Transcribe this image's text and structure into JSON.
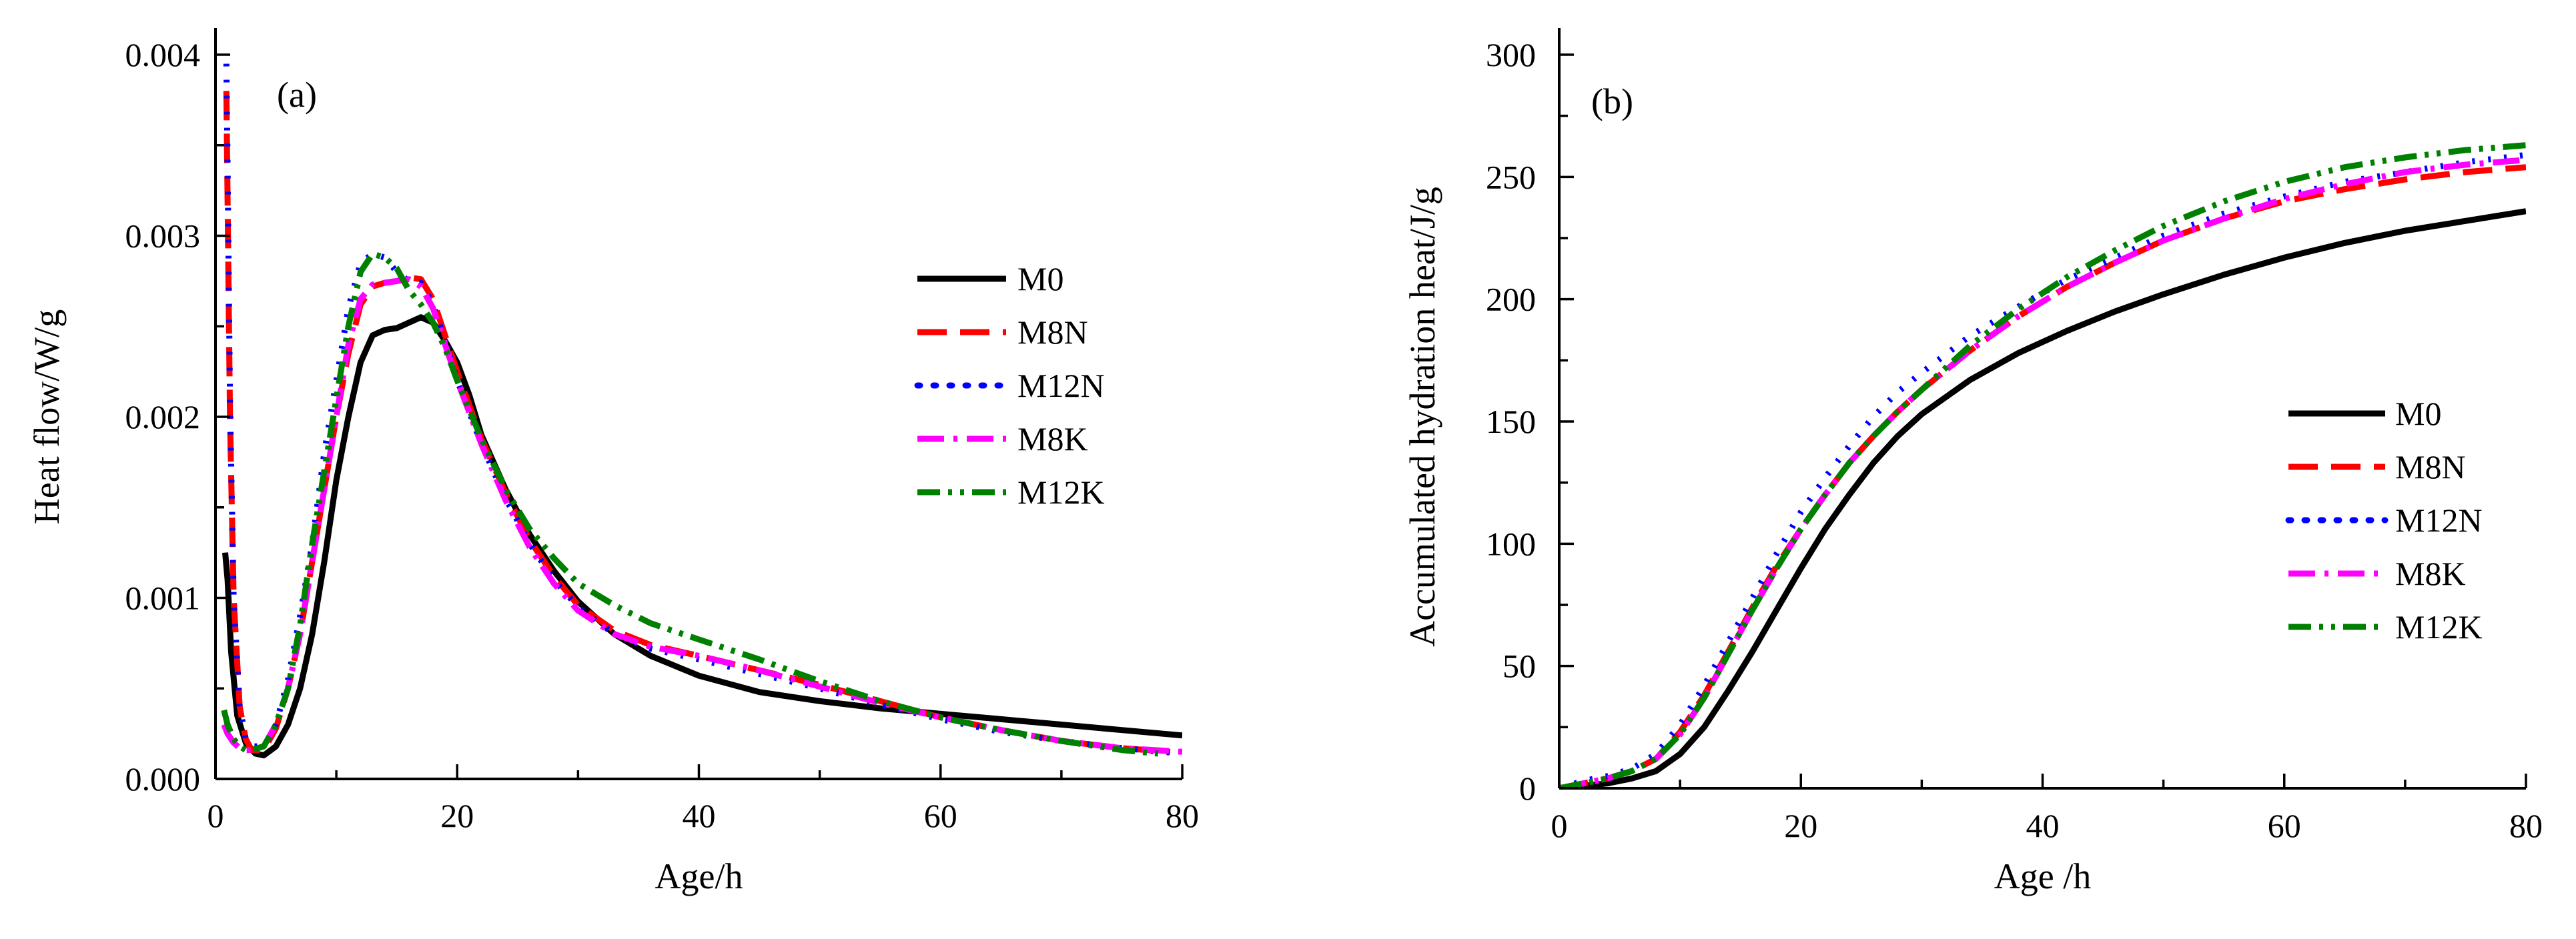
{
  "chart_data": [
    {
      "type": "line",
      "panel": "(a)",
      "title": "",
      "xlabel": "Age/h",
      "ylabel": "Heat flow/W/g",
      "xlim": [
        0,
        80
      ],
      "ylim": [
        0,
        0.004
      ],
      "xticks": [
        0,
        20,
        40,
        60,
        80
      ],
      "xtick_labels": [
        "0",
        "20",
        "40",
        "60",
        "80"
      ],
      "yticks": [
        0,
        0.001,
        0.002,
        0.003,
        0.004
      ],
      "ytick_labels": [
        "0.000",
        "0.001",
        "0.002",
        "0.003",
        "0.004"
      ],
      "grid": false,
      "legend_position": "right-middle",
      "series": [
        {
          "name": "M0",
          "color": "#000000",
          "dash": "solid",
          "x": [
            0.8,
            1.0,
            1.3,
            1.8,
            2.5,
            3.3,
            4.0,
            5.0,
            6.0,
            7.0,
            8.0,
            9.0,
            10.0,
            11.0,
            12.0,
            13.0,
            14.0,
            15.0,
            16.0,
            17.0,
            18.0,
            19.0,
            20.0,
            21.0,
            22.0,
            24.0,
            26.0,
            28.0,
            30.0,
            33.0,
            36.0,
            40.0,
            45.0,
            50.0,
            55.0,
            60.0,
            65.0,
            70.0,
            75.0,
            80.0
          ],
          "y": [
            0.00125,
            0.0011,
            0.0007,
            0.00035,
            0.0002,
            0.00014,
            0.00013,
            0.00018,
            0.0003,
            0.0005,
            0.0008,
            0.0012,
            0.00165,
            0.002,
            0.0023,
            0.00245,
            0.00248,
            0.00249,
            0.00252,
            0.00255,
            0.00252,
            0.00242,
            0.0023,
            0.00212,
            0.0019,
            0.0016,
            0.00135,
            0.00115,
            0.00098,
            0.0008,
            0.00068,
            0.00057,
            0.00048,
            0.00043,
            0.00039,
            0.00036,
            0.00033,
            0.0003,
            0.00027,
            0.00024
          ]
        },
        {
          "name": "M8N",
          "color": "#ff0000",
          "dash": "long-dash",
          "x": [
            0.9,
            1.0,
            1.2,
            1.5,
            2.0,
            2.5,
            3.0,
            4.0,
            5.0,
            6.0,
            7.0,
            8.0,
            9.0,
            10.0,
            11.0,
            12.0,
            13.0,
            14.0,
            15.0,
            16.0,
            17.0,
            18.0,
            19.0,
            20.0,
            22.0,
            24.0,
            26.0,
            28.0,
            30.0,
            33.0,
            36.0,
            40.0,
            45.0,
            50.0,
            55.0,
            60.0,
            65.0,
            70.0,
            75.0,
            79.0
          ],
          "y": [
            0.0038,
            0.0032,
            0.002,
            0.001,
            0.0004,
            0.00022,
            0.00016,
            0.00016,
            0.00028,
            0.0005,
            0.0008,
            0.0012,
            0.0016,
            0.002,
            0.00235,
            0.00262,
            0.00272,
            0.00274,
            0.00275,
            0.00277,
            0.00276,
            0.00265,
            0.00245,
            0.00225,
            0.00188,
            0.00158,
            0.00132,
            0.00112,
            0.00096,
            0.00082,
            0.00074,
            0.00068,
            0.0006,
            0.00052,
            0.00043,
            0.00034,
            0.00027,
            0.00021,
            0.00017,
            0.00015
          ]
        },
        {
          "name": "M12N",
          "color": "#0000ff",
          "dash": "dot",
          "x": [
            0.9,
            1.0,
            1.2,
            1.5,
            2.0,
            2.5,
            3.0,
            4.0,
            5.0,
            6.0,
            7.0,
            8.0,
            9.0,
            10.0,
            11.0,
            12.0,
            13.0,
            14.0,
            15.0,
            16.0,
            17.0,
            18.0,
            19.0,
            20.0,
            22.0,
            24.0,
            26.0,
            28.0,
            30.0,
            33.0,
            36.0,
            40.0,
            45.0,
            50.0,
            55.0,
            60.0,
            65.0,
            70.0,
            75.0,
            80.0
          ],
          "y": [
            0.00395,
            0.0034,
            0.0021,
            0.001,
            0.0004,
            0.00022,
            0.00018,
            0.00018,
            0.0003,
            0.00055,
            0.0009,
            0.0013,
            0.0018,
            0.0022,
            0.0026,
            0.00285,
            0.0029,
            0.00288,
            0.0028,
            0.00275,
            0.00274,
            0.00262,
            0.00242,
            0.0022,
            0.00185,
            0.00155,
            0.0013,
            0.0011,
            0.00095,
            0.0008,
            0.00072,
            0.00066,
            0.00058,
            0.0005,
            0.00041,
            0.00033,
            0.00026,
            0.00021,
            0.00017,
            0.00014
          ]
        },
        {
          "name": "M8K",
          "color": "#ff00ff",
          "dash": "dash-dot",
          "x": [
            0.7,
            1.0,
            1.5,
            2.0,
            2.5,
            3.0,
            4.0,
            5.0,
            6.0,
            7.0,
            8.0,
            9.0,
            10.0,
            11.0,
            12.0,
            13.0,
            14.0,
            15.0,
            16.0,
            17.0,
            18.0,
            19.0,
            20.0,
            22.0,
            24.0,
            26.0,
            28.0,
            30.0,
            33.0,
            36.0,
            40.0,
            45.0,
            50.0,
            55.0,
            60.0,
            65.0,
            70.0,
            75.0,
            80.0
          ],
          "y": [
            0.0003,
            0.00025,
            0.0002,
            0.00017,
            0.00016,
            0.00016,
            0.00018,
            0.0003,
            0.0005,
            0.0008,
            0.0012,
            0.0016,
            0.002,
            0.0024,
            0.00265,
            0.00273,
            0.00274,
            0.00275,
            0.00276,
            0.00272,
            0.0026,
            0.0024,
            0.0022,
            0.00185,
            0.00154,
            0.00128,
            0.00108,
            0.00093,
            0.0008,
            0.00073,
            0.00068,
            0.0006,
            0.00051,
            0.00042,
            0.00034,
            0.00027,
            0.00021,
            0.00017,
            0.00015
          ]
        },
        {
          "name": "M12K",
          "color": "#008000",
          "dash": "dash-dot-dot",
          "x": [
            0.7,
            1.0,
            1.5,
            2.0,
            2.5,
            3.0,
            4.0,
            5.0,
            6.0,
            7.0,
            8.0,
            9.0,
            10.0,
            11.0,
            12.0,
            13.0,
            14.0,
            15.0,
            16.0,
            17.0,
            18.0,
            19.0,
            20.0,
            22.0,
            24.0,
            26.0,
            28.0,
            30.0,
            33.0,
            36.0,
            40.0,
            45.0,
            50.0,
            55.0,
            60.0,
            65.0,
            70.0,
            75.0,
            78.0
          ],
          "y": [
            0.00038,
            0.0003,
            0.00022,
            0.00018,
            0.00016,
            0.00016,
            0.00018,
            0.0003,
            0.0005,
            0.00085,
            0.0013,
            0.0017,
            0.0021,
            0.0025,
            0.0028,
            0.0029,
            0.00288,
            0.00282,
            0.0027,
            0.00262,
            0.00252,
            0.00238,
            0.0022,
            0.00188,
            0.0016,
            0.00138,
            0.00122,
            0.00108,
            0.00096,
            0.00086,
            0.00077,
            0.00066,
            0.00054,
            0.00043,
            0.00034,
            0.00027,
            0.00021,
            0.00016,
            0.00014
          ]
        }
      ]
    },
    {
      "type": "line",
      "panel": "(b)",
      "title": "",
      "xlabel": "Age /h",
      "ylabel": "Accumulated hydration heat/J/g",
      "xlim": [
        0,
        80
      ],
      "ylim": [
        0,
        300
      ],
      "xticks": [
        0,
        20,
        40,
        60,
        80
      ],
      "xtick_labels": [
        "0",
        "20",
        "40",
        "60",
        "80"
      ],
      "yticks": [
        0,
        50,
        100,
        150,
        200,
        250,
        300
      ],
      "ytick_labels": [
        "0",
        "50",
        "100",
        "150",
        "200",
        "250",
        "300"
      ],
      "grid": false,
      "legend_position": "right-middle",
      "series": [
        {
          "name": "M0",
          "color": "#000000",
          "dash": "solid",
          "x": [
            0,
            2,
            4,
            6,
            8,
            10,
            12,
            14,
            16,
            18,
            20,
            22,
            24,
            26,
            28,
            30,
            34,
            38,
            42,
            46,
            50,
            55,
            60,
            65,
            70,
            75,
            80
          ],
          "y": [
            0,
            1,
            2,
            4,
            7,
            14,
            25,
            40,
            56,
            73,
            90,
            106,
            120,
            133,
            144,
            153,
            167,
            178,
            187,
            195,
            202,
            210,
            217,
            223,
            228,
            232,
            236
          ]
        },
        {
          "name": "M8N",
          "color": "#ff0000",
          "dash": "long-dash",
          "x": [
            0,
            2,
            4,
            6,
            8,
            10,
            12,
            14,
            16,
            18,
            20,
            22,
            24,
            26,
            28,
            30,
            34,
            38,
            42,
            46,
            50,
            55,
            60,
            65,
            70,
            75,
            80
          ],
          "y": [
            0,
            2,
            4,
            7,
            12,
            23,
            38,
            56,
            74,
            91,
            106,
            120,
            133,
            144,
            154,
            163,
            179,
            193,
            205,
            215,
            224,
            233,
            240,
            245,
            249,
            252,
            254
          ]
        },
        {
          "name": "M12N",
          "color": "#0000ff",
          "dash": "dot",
          "x": [
            0,
            2,
            4,
            6,
            8,
            10,
            12,
            14,
            16,
            18,
            20,
            22,
            24,
            26,
            28,
            30,
            34,
            38,
            42,
            46,
            50,
            55,
            60,
            65,
            70,
            75,
            80
          ],
          "y": [
            0,
            3,
            5,
            8,
            14,
            26,
            42,
            60,
            78,
            96,
            113,
            127,
            140,
            152,
            162,
            170,
            185,
            197,
            208,
            217,
            226,
            235,
            242,
            248,
            252,
            256,
            259
          ]
        },
        {
          "name": "M8K",
          "color": "#ff00ff",
          "dash": "dash-dot",
          "x": [
            0,
            2,
            4,
            6,
            8,
            10,
            12,
            14,
            16,
            18,
            20,
            22,
            24,
            26,
            28,
            30,
            34,
            38,
            42,
            46,
            50,
            55,
            60,
            65,
            70,
            75,
            80
          ],
          "y": [
            0,
            2,
            4,
            7,
            12,
            22,
            37,
            55,
            73,
            90,
            106,
            120,
            133,
            144,
            154,
            163,
            179,
            193,
            205,
            215,
            224,
            233,
            241,
            247,
            252,
            255,
            257
          ]
        },
        {
          "name": "M12K",
          "color": "#008000",
          "dash": "dash-dot-dot",
          "x": [
            0,
            2,
            4,
            6,
            8,
            10,
            12,
            14,
            16,
            18,
            20,
            22,
            24,
            26,
            28,
            30,
            34,
            38,
            42,
            46,
            50,
            55,
            60,
            65,
            70,
            75,
            80
          ],
          "y": [
            0,
            2,
            4,
            7,
            12,
            22,
            37,
            55,
            73,
            90,
            106,
            120,
            133,
            144,
            154,
            163,
            181,
            196,
            209,
            220,
            230,
            240,
            248,
            254,
            258,
            261,
            263
          ]
        }
      ]
    }
  ]
}
